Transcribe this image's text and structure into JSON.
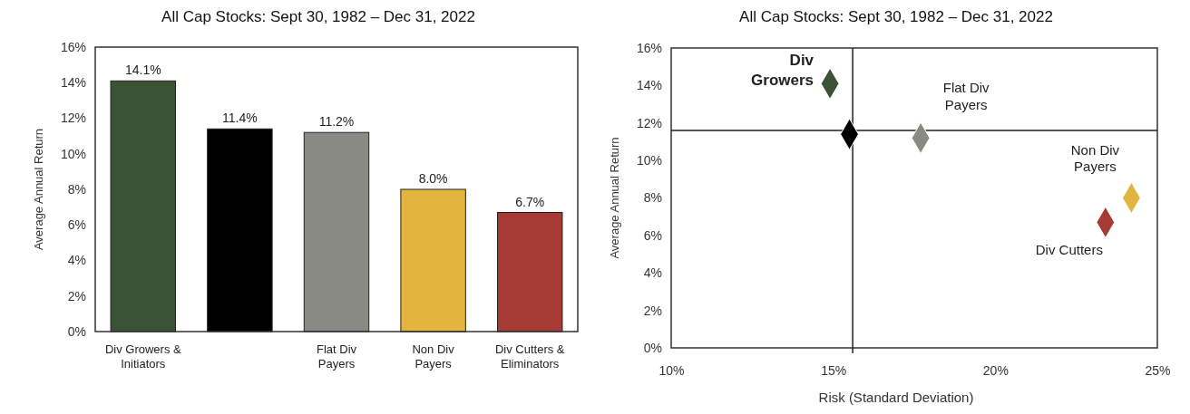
{
  "chart_data": [
    {
      "type": "bar",
      "title": "All Cap Stocks:  Sept 30, 1982 – Dec 31, 2022",
      "ylabel": "Average Annual Return",
      "categories": [
        "Div Growers & Initiators",
        null,
        "Flat Div Payers",
        "Non Div Payers",
        "Div Cutters & Eliminators"
      ],
      "values": [
        14.1,
        11.4,
        11.2,
        8.0,
        6.7
      ],
      "colors": [
        "#3b5236",
        "#000000",
        "#8a8a85",
        "#e3b440",
        "#a63a34"
      ],
      "value_labels": [
        "14.1%",
        "11.4%",
        "11.2%",
        "8.0%",
        "6.7%"
      ],
      "ylim": [
        0,
        16
      ],
      "yticks": [
        {
          "value": 0,
          "label": "0%"
        },
        {
          "value": 2,
          "label": "2%"
        },
        {
          "value": 4,
          "label": "4%"
        },
        {
          "value": 6,
          "label": "6%"
        },
        {
          "value": 8,
          "label": "8%"
        },
        {
          "value": 10,
          "label": "10%"
        },
        {
          "value": 12,
          "label": "12%"
        },
        {
          "value": 14,
          "label": "14%"
        },
        {
          "value": 16,
          "label": "16%"
        }
      ],
      "grid": false
    },
    {
      "type": "scatter",
      "title": "All Cap Stocks:  Sept 30, 1982 – Dec 31, 2022",
      "xlabel": "Risk (Standard Deviation)",
      "ylabel": "Average Annual Return",
      "marker": "diamond",
      "series": [
        {
          "name": "Div Growers",
          "color": "#3b5236",
          "x": [
            14.9
          ],
          "values": [
            14.1
          ]
        },
        {
          "color": "#000000",
          "x": [
            15.5
          ],
          "values": [
            11.4
          ]
        },
        {
          "name": "Flat Div Payers",
          "color": "#8a8a85",
          "x": [
            17.7
          ],
          "values": [
            11.2
          ]
        },
        {
          "name": "Non Div Payers",
          "color": "#e3b440",
          "x": [
            24.2
          ],
          "values": [
            8.0
          ]
        },
        {
          "name": "Div Cutters",
          "color": "#a63a34",
          "x": [
            23.4
          ],
          "values": [
            6.7
          ]
        }
      ],
      "xlim": [
        10,
        25
      ],
      "xticks": [
        {
          "value": 10,
          "label": "10%"
        },
        {
          "value": 15,
          "label": "15%"
        },
        {
          "value": 20,
          "label": "20%"
        },
        {
          "value": 25,
          "label": "25%"
        }
      ],
      "ylim": [
        0,
        16
      ],
      "yticks": [
        {
          "value": 0,
          "label": "0%"
        },
        {
          "value": 2,
          "label": "2%"
        },
        {
          "value": 4,
          "label": "4%"
        },
        {
          "value": 6,
          "label": "6%"
        },
        {
          "value": 8,
          "label": "8%"
        },
        {
          "value": 10,
          "label": "10%"
        },
        {
          "value": 12,
          "label": "12%"
        },
        {
          "value": 14,
          "label": "14%"
        },
        {
          "value": 16,
          "label": "16%"
        }
      ],
      "ref_lines": [
        {
          "axis": "x",
          "value": 15.6
        },
        {
          "axis": "y",
          "value": 11.6
        }
      ],
      "grid": false
    }
  ]
}
